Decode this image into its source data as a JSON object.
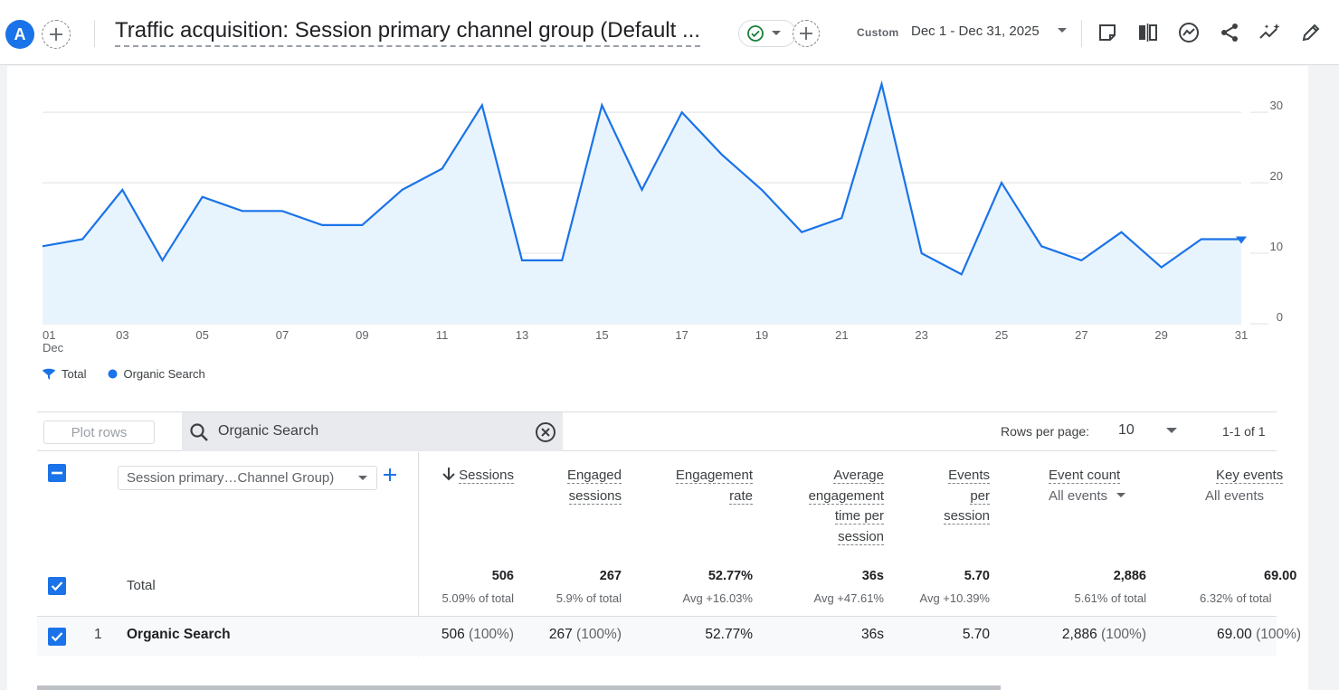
{
  "header": {
    "avatar_letter": "A",
    "title": "Traffic acquisition: Session primary channel group (Default ...",
    "date_label": "Custom",
    "date_range": "Dec 1 - Dec 31, 2025",
    "icons": [
      "add-comparison-icon",
      "check-circle-icon",
      "chevron-down-icon",
      "add-icon",
      "insights-note-icon",
      "compare-columns-icon",
      "trend-icon",
      "share-icon",
      "sparkle-insights-icon",
      "edit-icon"
    ]
  },
  "legend": {
    "total": "Total",
    "organic": "Organic Search"
  },
  "chart_data": {
    "type": "line",
    "x": [
      1,
      2,
      3,
      4,
      5,
      6,
      7,
      8,
      9,
      10,
      11,
      12,
      13,
      14,
      15,
      16,
      17,
      18,
      19,
      20,
      21,
      22,
      23,
      24,
      25,
      26,
      27,
      28,
      29,
      30,
      31
    ],
    "x_tick_labels": [
      "01",
      "03",
      "05",
      "07",
      "09",
      "11",
      "13",
      "15",
      "17",
      "19",
      "21",
      "23",
      "25",
      "27",
      "29",
      "31"
    ],
    "x_tick_values": [
      1,
      3,
      5,
      7,
      9,
      11,
      13,
      15,
      17,
      19,
      21,
      23,
      25,
      27,
      29,
      31
    ],
    "x_sub_label": "Dec",
    "series": [
      {
        "name": "Organic Search",
        "values": [
          11,
          12,
          19,
          9,
          18,
          16,
          16,
          14,
          14,
          19,
          22,
          31,
          9,
          9,
          31,
          19,
          30,
          24,
          19,
          13,
          15,
          34,
          10,
          7,
          20,
          11,
          9,
          13,
          8,
          12,
          12
        ]
      }
    ],
    "y_ticks": [
      0,
      10,
      20,
      30
    ],
    "ylim": [
      0,
      34
    ],
    "y_axis_position": "right",
    "grid": true,
    "legend_position": "bottom-left",
    "colors": {
      "line": "#1a73e8",
      "area": "#e8f4fd"
    }
  },
  "toolbar": {
    "plot_rows": "Plot rows",
    "search_value": "Organic Search",
    "rows_per_page_label": "Rows per page:",
    "rows_per_page": "10",
    "pager": "1-1 of 1"
  },
  "table": {
    "dimension": "Session primary…Channel Group)",
    "columns": {
      "sessions": "Sessions",
      "engaged_1": "Engaged",
      "engaged_2": "sessions",
      "engrate_1": "Engagement",
      "engrate_2": "rate",
      "avgtime_1": "Average",
      "avgtime_2": "engagement",
      "avgtime_3": "time per",
      "avgtime_4": "session",
      "events_1": "Events",
      "events_2": "per",
      "events_3": "session",
      "eventcount": "Event count",
      "eventcount_sub": "All events",
      "keyevents": "Key events",
      "keyevents_sub": "All events"
    },
    "totals": {
      "label": "Total",
      "sessions": "506",
      "sessions_sub": "5.09% of total",
      "engaged": "267",
      "engaged_sub": "5.9% of total",
      "engrate": "52.77%",
      "engrate_sub": "Avg +16.03%",
      "avgtime": "36s",
      "avgtime_sub": "Avg +47.61%",
      "events": "5.70",
      "events_sub": "Avg +10.39%",
      "eventcount": "2,886",
      "eventcount_sub": "5.61% of total",
      "keyevents": "69.00",
      "keyevents_sub": "6.32% of total"
    },
    "rows": [
      {
        "num": "1",
        "name": "Organic Search",
        "sessions": "506",
        "sessions_pct": "(100%)",
        "engaged": "267",
        "engaged_pct": "(100%)",
        "engrate": "52.77%",
        "avgtime": "36s",
        "events": "5.70",
        "eventcount": "2,886",
        "eventcount_pct": "(100%)",
        "keyevents": "69.00",
        "keyevents_pct": "(100%)"
      }
    ]
  }
}
